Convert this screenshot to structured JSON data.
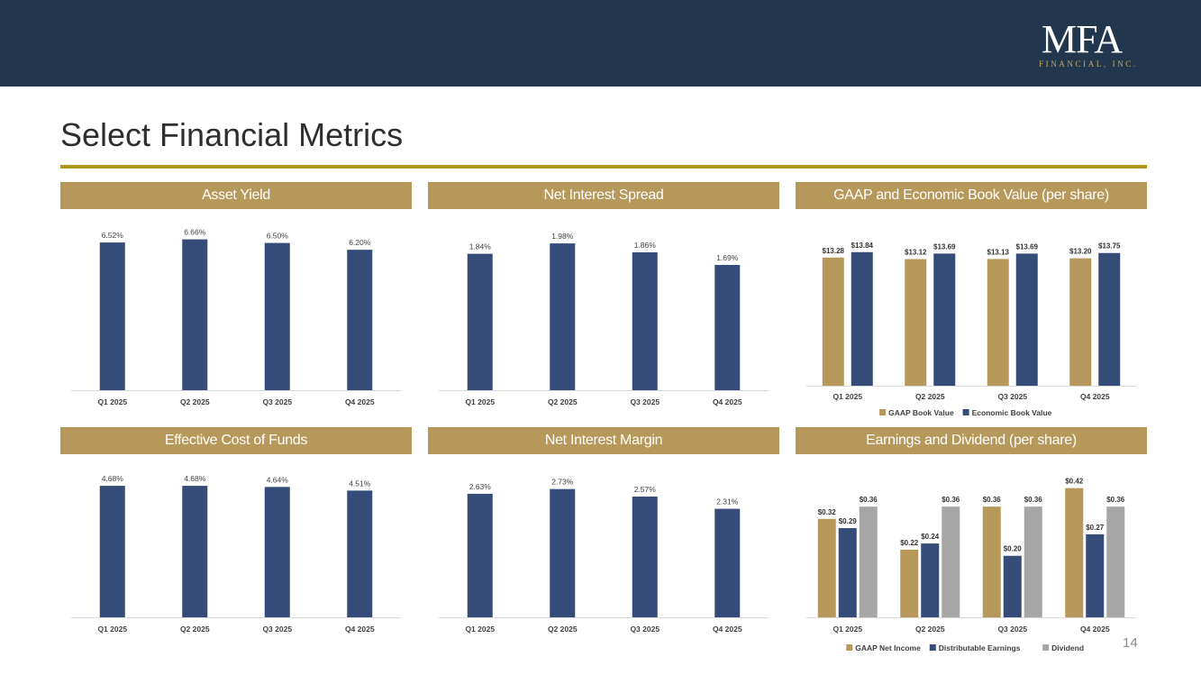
{
  "header": {
    "logo_main": "MFA",
    "logo_sub": "FINANCIAL, INC.",
    "page_title": "Select Financial Metrics",
    "page_number": "14"
  },
  "colors": {
    "navy": "#22374d",
    "bar_blue": "#354b78",
    "gold": "#b5985a",
    "gray": "#a6a6a6",
    "rule": "#b0951c"
  },
  "chart_data": [
    {
      "id": "asset-yield",
      "title": "Asset Yield",
      "type": "bar",
      "categories": [
        "Q1 2025",
        "Q2 2025",
        "Q3 2025",
        "Q4 2025"
      ],
      "series": [
        {
          "name": "Asset Yield",
          "values": [
            6.52,
            6.66,
            6.5,
            6.2
          ],
          "labels": [
            "6.52%",
            "6.66%",
            "6.50%",
            "6.20%"
          ]
        }
      ],
      "ylim": [
        0,
        7.2
      ]
    },
    {
      "id": "net-interest-spread",
      "title": "Net Interest Spread",
      "type": "bar",
      "categories": [
        "Q1 2025",
        "Q2 2025",
        "Q3 2025",
        "Q4 2025"
      ],
      "series": [
        {
          "name": "Net Interest Spread",
          "values": [
            1.84,
            1.98,
            1.86,
            1.69
          ],
          "labels": [
            "1.84%",
            "1.98%",
            "1.86%",
            "1.69%"
          ]
        }
      ],
      "ylim": [
        0,
        2.2
      ]
    },
    {
      "id": "book-value",
      "title": "GAAP and Economic Book Value (per share)",
      "type": "bar",
      "categories": [
        "Q1 2025",
        "Q2 2025",
        "Q3 2025",
        "Q4 2025"
      ],
      "series": [
        {
          "name": "GAAP Book Value",
          "values": [
            13.28,
            13.12,
            13.13,
            13.2
          ],
          "labels": [
            "$13.28",
            "$13.12",
            "$13.13",
            "$13.20"
          ]
        },
        {
          "name": "Economic Book Value",
          "values": [
            13.84,
            13.69,
            13.69,
            13.75
          ],
          "labels": [
            "$13.84",
            "$13.69",
            "$13.69",
            "$13.75"
          ]
        }
      ],
      "ylim": [
        0,
        15.5
      ],
      "legend": "bottom"
    },
    {
      "id": "cost-of-funds",
      "title": "Effective Cost of Funds",
      "type": "bar",
      "categories": [
        "Q1 2025",
        "Q2 2025",
        "Q3 2025",
        "Q4 2025"
      ],
      "series": [
        {
          "name": "Effective Cost of Funds",
          "values": [
            4.68,
            4.68,
            4.64,
            4.51
          ],
          "labels": [
            "4.68%",
            "4.68%",
            "4.64%",
            "4.51%"
          ]
        }
      ],
      "ylim": [
        0,
        5.1
      ]
    },
    {
      "id": "net-interest-margin",
      "title": "Net Interest Margin",
      "type": "bar",
      "categories": [
        "Q1 2025",
        "Q2 2025",
        "Q3 2025",
        "Q4 2025"
      ],
      "series": [
        {
          "name": "Net Interest Margin",
          "values": [
            2.63,
            2.73,
            2.57,
            2.31
          ],
          "labels": [
            "2.63%",
            "2.73%",
            "2.57%",
            "2.31%"
          ]
        }
      ],
      "ylim": [
        0,
        3.05
      ]
    },
    {
      "id": "earnings-dividend",
      "title": "Earnings and Dividend (per share)",
      "type": "bar",
      "categories": [
        "Q1 2025",
        "Q2 2025",
        "Q3 2025",
        "Q4 2025"
      ],
      "series": [
        {
          "name": "GAAP Net Income",
          "values": [
            0.32,
            0.22,
            0.36,
            0.42
          ],
          "labels": [
            "$0.32",
            "$0.22",
            "$0.36",
            "$0.42"
          ]
        },
        {
          "name": "Distributable Earnings",
          "values": [
            0.29,
            0.24,
            0.2,
            0.27
          ],
          "labels": [
            "$0.29",
            "$0.24",
            "$0.20",
            "$0.27"
          ]
        },
        {
          "name": "Dividend",
          "values": [
            0.36,
            0.36,
            0.36,
            0.36
          ],
          "labels": [
            "$0.36",
            "$0.36",
            "$0.36",
            "$0.36"
          ]
        }
      ],
      "ylim": [
        0,
        0.46
      ],
      "legend": "bottom"
    }
  ]
}
